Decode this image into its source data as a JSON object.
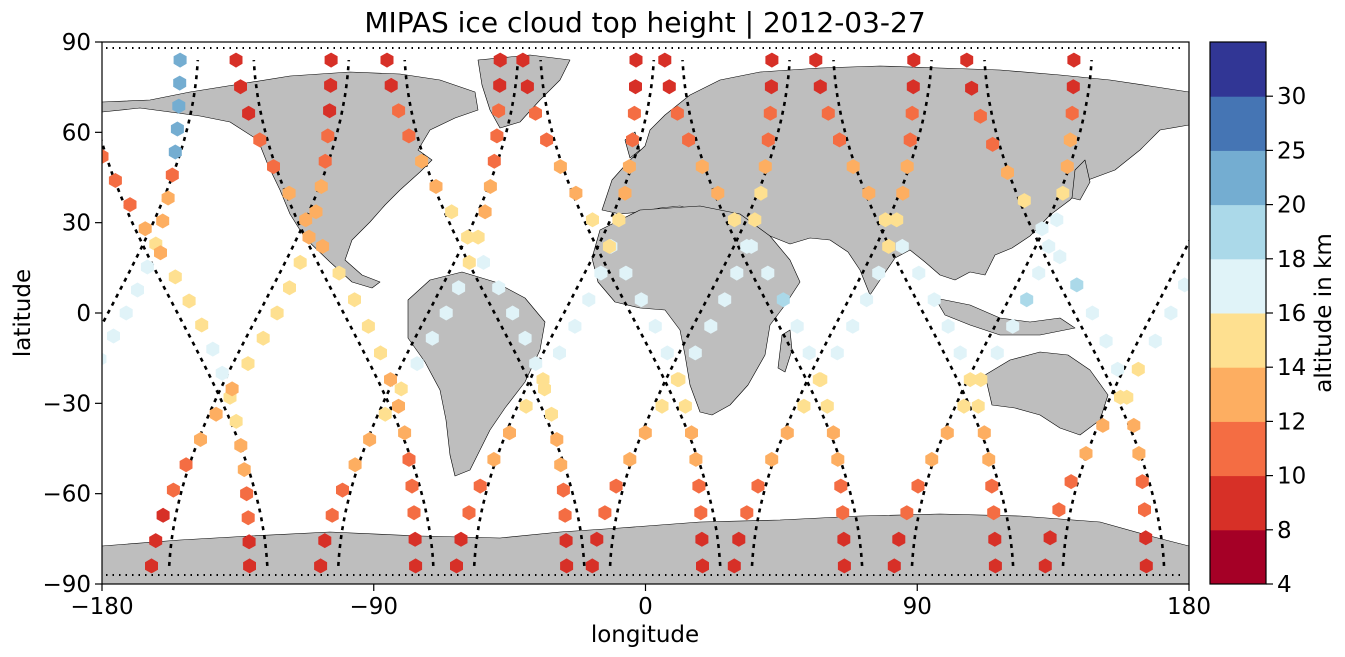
{
  "chart_data": {
    "type": "scatter",
    "title": "MIPAS ice cloud top height | 2012-03-27",
    "xlabel": "longitude",
    "ylabel": "latitude",
    "xlim": [
      -180,
      180
    ],
    "ylim": [
      -90,
      90
    ],
    "xticks": [
      -180,
      -90,
      0,
      90,
      180
    ],
    "yticks": [
      -90,
      -60,
      -30,
      0,
      30,
      60,
      90
    ],
    "xtick_labels": [
      "−180",
      "−90",
      "0",
      "90",
      "180"
    ],
    "ytick_labels": [
      "−90",
      "−60",
      "−30",
      "0",
      "30",
      "60",
      "90"
    ],
    "grid": false,
    "background_map": "coastlines with grey land",
    "track_style": "black dotted satellite orbit tracks",
    "colorbar": {
      "label": "altitude in km",
      "boundaries": [
        4,
        8,
        10,
        12,
        14,
        16,
        18,
        20,
        25,
        30
      ],
      "tick_labels": [
        "4",
        "8",
        "10",
        "12",
        "14",
        "16",
        "18",
        "20",
        "25",
        "30"
      ],
      "colors": [
        "#a50026",
        "#d73027",
        "#f46d43",
        "#fdae61",
        "#fee090",
        "#e0f3f8",
        "#abd9e9",
        "#74add1",
        "#4575b4",
        "#313695"
      ]
    },
    "land_color": "#bebebe",
    "colors": {
      "track": "#000000",
      "axes": "#000000"
    },
    "orbits": [
      {
        "lon_eq": -178,
        "dir": 1,
        "tops": [
          24,
          24,
          24,
          24,
          24,
          10,
          12,
          12,
          14,
          16,
          16,
          16,
          16,
          16,
          14,
          14,
          12,
          12,
          10,
          10,
          8,
          8,
          8
        ]
      },
      {
        "lon_eq": -155,
        "dir": -1,
        "tops": [
          8,
          8,
          8,
          8,
          10,
          10,
          10,
          12,
          12,
          14,
          14,
          14,
          16,
          16,
          14,
          14,
          12,
          12,
          10,
          10,
          8,
          8
        ]
      },
      {
        "lon_eq": -128,
        "dir": 1,
        "tops": [
          8,
          8,
          8,
          10,
          10,
          12,
          12,
          12,
          14,
          14,
          14,
          14,
          14,
          12,
          12,
          12,
          10,
          10,
          8,
          8,
          8
        ]
      },
      {
        "lon_eq": -100,
        "dir": -1,
        "tops": [
          8,
          8,
          8,
          10,
          10,
          12,
          12,
          12,
          14,
          14,
          14,
          14,
          12,
          12,
          12,
          10,
          10,
          10,
          8,
          8
        ]
      },
      {
        "lon_eq": -72,
        "dir": 1,
        "tops": [
          8,
          8,
          10,
          10,
          10,
          12,
          12,
          14,
          14,
          16,
          16,
          16,
          16,
          14,
          14,
          12,
          12,
          10,
          10,
          8,
          8
        ]
      },
      {
        "lon_eq": -50,
        "dir": -1,
        "tops": [
          8,
          8,
          10,
          10,
          12,
          12,
          14,
          14,
          16,
          16,
          16,
          16,
          16,
          14,
          14,
          12,
          12,
          10,
          10,
          8,
          8
        ]
      },
      {
        "lon_eq": -27,
        "dir": 1,
        "tops": [
          8,
          8,
          10,
          10,
          12,
          12,
          14,
          16,
          16,
          16,
          16,
          16,
          14,
          14,
          12,
          12,
          10,
          10,
          8,
          8
        ]
      },
      {
        "lon_eq": -5,
        "dir": -1,
        "tops": [
          8,
          8,
          10,
          10,
          12,
          12,
          14,
          14,
          16,
          16,
          16,
          16,
          14,
          14,
          12,
          12,
          10,
          10,
          8,
          8
        ]
      },
      {
        "lon_eq": 18,
        "dir": 1,
        "tops": [
          8,
          8,
          10,
          10,
          12,
          14,
          14,
          16,
          16,
          16,
          16,
          16,
          14,
          14,
          12,
          12,
          10,
          10,
          8,
          8
        ]
      },
      {
        "lon_eq": 42,
        "dir": -1,
        "tops": [
          8,
          8,
          10,
          10,
          12,
          12,
          14,
          16,
          16,
          18,
          16,
          16,
          14,
          14,
          12,
          12,
          10,
          10,
          8,
          8
        ]
      },
      {
        "lon_eq": 65,
        "dir": 1,
        "tops": [
          8,
          8,
          10,
          10,
          12,
          12,
          14,
          14,
          16,
          16,
          16,
          16,
          14,
          14,
          12,
          12,
          10,
          10,
          8,
          8
        ]
      },
      {
        "lon_eq": 92,
        "dir": -1,
        "tops": [
          8,
          8,
          10,
          10,
          12,
          12,
          14,
          16,
          16,
          16,
          16,
          16,
          14,
          14,
          12,
          12,
          10,
          10,
          8,
          8
        ]
      },
      {
        "lon_eq": 118,
        "dir": 1,
        "tops": [
          8,
          8,
          10,
          12,
          12,
          14,
          16,
          16,
          16,
          18,
          16,
          16,
          14,
          14,
          12,
          12,
          10,
          10,
          8,
          8
        ]
      },
      {
        "lon_eq": 142,
        "dir": -1,
        "tops": [
          8,
          8,
          10,
          10,
          12,
          14,
          16,
          16,
          18,
          16,
          16,
          16,
          14,
          12,
          12,
          10,
          10,
          8,
          8
        ]
      },
      {
        "lon_eq": 168,
        "dir": 1,
        "tops": [
          8,
          8,
          10,
          10,
          12,
          14,
          16,
          16,
          16,
          16,
          16,
          14,
          14,
          12,
          12,
          10,
          10,
          8,
          8
        ]
      }
    ]
  }
}
